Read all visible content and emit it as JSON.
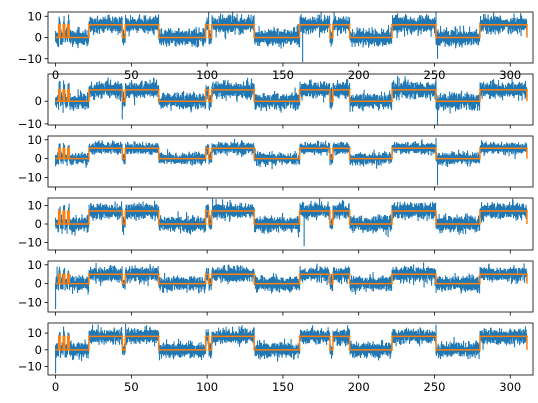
{
  "chart_data": [
    {
      "type": "line",
      "title": "",
      "xlabel": "",
      "ylabel": "",
      "xlim": [
        -5,
        315
      ],
      "ylim": [
        -12,
        12
      ],
      "grid": false,
      "x_ticks": [
        {
          "value": 0,
          "label": "0"
        },
        {
          "value": 50,
          "label": "50"
        },
        {
          "value": 100,
          "label": "100"
        },
        {
          "value": 150,
          "label": "150"
        },
        {
          "value": 200,
          "label": "200"
        },
        {
          "value": 250,
          "label": "250"
        },
        {
          "value": 300,
          "label": "300"
        }
      ],
      "y_ticks": [
        {
          "value": 10,
          "label": "10"
        },
        {
          "value": 0,
          "label": "0"
        },
        {
          "value": -10,
          "label": "−10"
        }
      ],
      "series": [
        {
          "role": "signal",
          "color": "#1f77b4",
          "x_range": [
            0,
            311
          ],
          "noise_std": 3.3,
          "spikes": [
            [
              162,
              11
            ],
            [
              163,
              -11.5
            ],
            [
              251,
              12
            ],
            [
              252,
              -10
            ]
          ]
        },
        {
          "role": "state",
          "color": "#ff7f0e",
          "high": 6,
          "low": 0,
          "x": [
            0,
            2,
            3,
            5,
            6,
            8,
            9,
            22,
            44,
            46,
            68,
            99,
            101,
            103,
            131,
            161,
            181,
            183,
            194,
            222,
            251,
            280,
            311
          ],
          "y": [
            0,
            6,
            0,
            6,
            0,
            6,
            0,
            6,
            0,
            6,
            0,
            6,
            0,
            6,
            0,
            6,
            0,
            6,
            0,
            6,
            0,
            6,
            0
          ]
        }
      ]
    },
    {
      "type": "line",
      "title": "",
      "xlabel": "",
      "ylabel": "",
      "xlim": [
        -5,
        315
      ],
      "ylim": [
        -10.5,
        12
      ],
      "grid": false,
      "x_ticks": [
        {
          "value": 0,
          "label": ""
        },
        {
          "value": 50,
          "label": ""
        },
        {
          "value": 100,
          "label": ""
        },
        {
          "value": 150,
          "label": ""
        },
        {
          "value": 200,
          "label": ""
        },
        {
          "value": 250,
          "label": ""
        },
        {
          "value": 300,
          "label": ""
        }
      ],
      "y_ticks": [
        {
          "value": 0,
          "label": "0"
        },
        {
          "value": -10,
          "label": "−10"
        }
      ],
      "series": [
        {
          "role": "signal",
          "color": "#1f77b4",
          "x_range": [
            0,
            311
          ],
          "noise_std": 3.0,
          "spikes": [
            [
              44,
              -8
            ],
            [
              251,
              10
            ],
            [
              252,
              -10.5
            ],
            [
              310,
              9
            ]
          ]
        },
        {
          "role": "state",
          "color": "#ff7f0e",
          "high": 5,
          "low": 0,
          "x": [
            0,
            2,
            3,
            5,
            6,
            8,
            9,
            22,
            44,
            46,
            68,
            99,
            101,
            103,
            131,
            161,
            181,
            183,
            194,
            222,
            251,
            280,
            311
          ],
          "y": [
            0,
            5,
            0,
            5,
            0,
            5,
            0,
            5,
            0,
            5,
            0,
            5,
            0,
            5,
            0,
            5,
            0,
            5,
            0,
            5,
            0,
            5,
            0
          ]
        }
      ]
    },
    {
      "type": "line",
      "title": "",
      "xlabel": "",
      "ylabel": "",
      "xlim": [
        -5,
        315
      ],
      "ylim": [
        -15,
        12
      ],
      "grid": false,
      "x_ticks": [
        {
          "value": 0,
          "label": ""
        },
        {
          "value": 50,
          "label": ""
        },
        {
          "value": 100,
          "label": ""
        },
        {
          "value": 150,
          "label": ""
        },
        {
          "value": 200,
          "label": ""
        },
        {
          "value": 250,
          "label": ""
        },
        {
          "value": 300,
          "label": ""
        }
      ],
      "y_ticks": [
        {
          "value": 10,
          "label": "10"
        },
        {
          "value": 0,
          "label": "0"
        },
        {
          "value": -10,
          "label": "−10"
        }
      ],
      "series": [
        {
          "role": "signal",
          "color": "#1f77b4",
          "x_range": [
            0,
            311
          ],
          "noise_std": 2.6,
          "spikes": [
            [
              251,
              11
            ],
            [
              252,
              -14
            ]
          ]
        },
        {
          "role": "state",
          "color": "#ff7f0e",
          "high": 5.5,
          "low": 0,
          "x": [
            0,
            2,
            3,
            5,
            6,
            8,
            9,
            22,
            44,
            46,
            68,
            99,
            101,
            103,
            131,
            161,
            181,
            183,
            194,
            222,
            251,
            280,
            311
          ],
          "y": [
            0,
            5.5,
            0,
            5.5,
            0,
            5.5,
            0,
            5.5,
            0,
            5.5,
            0,
            5.5,
            0,
            5.5,
            0,
            5.5,
            0,
            5.5,
            0,
            5.5,
            0,
            5.5,
            0
          ]
        }
      ]
    },
    {
      "type": "line",
      "title": "",
      "xlabel": "",
      "ylabel": "",
      "xlim": [
        -5,
        315
      ],
      "ylim": [
        -14,
        14
      ],
      "grid": false,
      "x_ticks": [
        {
          "value": 0,
          "label": ""
        },
        {
          "value": 50,
          "label": ""
        },
        {
          "value": 100,
          "label": ""
        },
        {
          "value": 150,
          "label": ""
        },
        {
          "value": 200,
          "label": ""
        },
        {
          "value": 250,
          "label": ""
        },
        {
          "value": 300,
          "label": ""
        }
      ],
      "y_ticks": [
        {
          "value": 10,
          "label": "10"
        },
        {
          "value": 0,
          "label": "0"
        },
        {
          "value": -10,
          "label": "−10"
        }
      ],
      "series": [
        {
          "role": "signal",
          "color": "#1f77b4",
          "x_range": [
            0,
            311
          ],
          "noise_std": 3.6,
          "spikes": [
            [
              163,
              12
            ],
            [
              164,
              -12
            ]
          ]
        },
        {
          "role": "state",
          "color": "#ff7f0e",
          "high": 7,
          "low": 0,
          "x": [
            0,
            2,
            3,
            5,
            6,
            8,
            9,
            22,
            44,
            46,
            68,
            99,
            101,
            103,
            131,
            161,
            181,
            183,
            194,
            222,
            251,
            280,
            311
          ],
          "y": [
            0,
            7,
            0,
            7,
            0,
            7,
            0,
            7,
            0,
            7,
            0,
            7,
            0,
            7,
            0,
            7,
            0,
            7,
            0,
            7,
            0,
            7,
            0
          ]
        }
      ]
    },
    {
      "type": "line",
      "title": "",
      "xlabel": "",
      "ylabel": "",
      "xlim": [
        -5,
        315
      ],
      "ylim": [
        -15,
        12
      ],
      "grid": false,
      "x_ticks": [
        {
          "value": 0,
          "label": ""
        },
        {
          "value": 50,
          "label": ""
        },
        {
          "value": 100,
          "label": ""
        },
        {
          "value": 150,
          "label": ""
        },
        {
          "value": 200,
          "label": ""
        },
        {
          "value": 250,
          "label": ""
        },
        {
          "value": 300,
          "label": ""
        }
      ],
      "y_ticks": [
        {
          "value": 10,
          "label": "10"
        },
        {
          "value": 0,
          "label": "0"
        },
        {
          "value": -10,
          "label": "−10"
        }
      ],
      "series": [
        {
          "role": "signal",
          "color": "#1f77b4",
          "x_range": [
            0,
            311
          ],
          "noise_std": 3.3,
          "spikes": [
            [
              0,
              -13.5
            ],
            [
              1,
              9
            ]
          ]
        },
        {
          "role": "state",
          "color": "#ff7f0e",
          "high": 5,
          "low": 0,
          "x": [
            0,
            2,
            3,
            5,
            6,
            8,
            9,
            22,
            44,
            46,
            68,
            99,
            101,
            103,
            131,
            161,
            181,
            183,
            194,
            222,
            251,
            280,
            311
          ],
          "y": [
            0,
            5,
            0,
            5,
            0,
            5,
            0,
            5,
            0,
            5,
            0,
            5,
            0,
            5,
            0,
            5,
            0,
            5,
            0,
            5,
            0,
            5,
            0
          ]
        }
      ]
    },
    {
      "type": "line",
      "title": "",
      "xlabel": "",
      "ylabel": "",
      "xlim": [
        -5,
        315
      ],
      "ylim": [
        -15,
        16
      ],
      "grid": false,
      "x_ticks": [
        {
          "value": 0,
          "label": "0"
        },
        {
          "value": 50,
          "label": "50"
        },
        {
          "value": 100,
          "label": "100"
        },
        {
          "value": 150,
          "label": "150"
        },
        {
          "value": 200,
          "label": "200"
        },
        {
          "value": 250,
          "label": "250"
        },
        {
          "value": 300,
          "label": "300"
        }
      ],
      "y_ticks": [
        {
          "value": 10,
          "label": "10"
        },
        {
          "value": 0,
          "label": "0"
        },
        {
          "value": -10,
          "label": "−10"
        }
      ],
      "series": [
        {
          "role": "signal",
          "color": "#1f77b4",
          "x_range": [
            0,
            311
          ],
          "noise_std": 3.8,
          "spikes": [
            [
              0,
              -14
            ],
            [
              251,
              15
            ],
            [
              310,
              14
            ]
          ]
        },
        {
          "role": "state",
          "color": "#ff7f0e",
          "high": 8,
          "low": 0,
          "x": [
            0,
            2,
            3,
            5,
            6,
            8,
            9,
            22,
            44,
            46,
            68,
            99,
            101,
            103,
            131,
            161,
            181,
            183,
            194,
            222,
            251,
            280,
            311
          ],
          "y": [
            0,
            8,
            0,
            8,
            0,
            8,
            0,
            8,
            0,
            8,
            0,
            8,
            0,
            8,
            0,
            8,
            0,
            8,
            0,
            8,
            0,
            8,
            0
          ]
        }
      ]
    }
  ]
}
